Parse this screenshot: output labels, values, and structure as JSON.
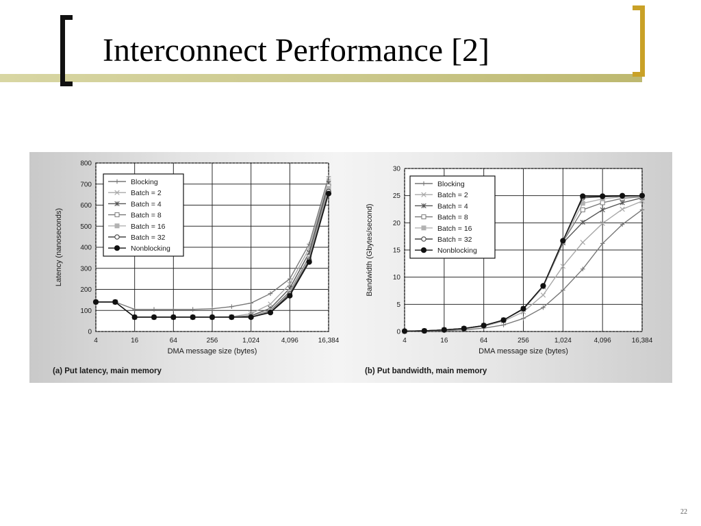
{
  "slide": {
    "title": "Interconnect Performance [2]",
    "page_number": "22",
    "colors": {
      "left_bracket": "#111111",
      "right_bracket": "#c9a127",
      "accent_bar": "#cbc88c"
    }
  },
  "chart_data": [
    {
      "type": "line",
      "caption": "(a) Put latency, main memory",
      "xlabel": "DMA message size (bytes)",
      "ylabel": "Latency (nanoseconds)",
      "x_scale": "log2",
      "x": [
        4,
        8,
        16,
        32,
        64,
        128,
        256,
        512,
        1024,
        2048,
        4096,
        8192,
        16384
      ],
      "x_ticks": [
        4,
        16,
        64,
        256,
        1024,
        4096,
        16384
      ],
      "x_tick_labels": [
        "4",
        "16",
        "64",
        "256",
        "1,024",
        "4,096",
        "16,384"
      ],
      "y_ticks": [
        0,
        100,
        200,
        300,
        400,
        500,
        600,
        700,
        800
      ],
      "y_tick_labels": [
        "0",
        "100",
        "200",
        "300",
        "400",
        "500",
        "600",
        "700",
        "800"
      ],
      "ylim": [
        0,
        800
      ],
      "grid": true,
      "legend_position": "top-left",
      "series": [
        {
          "name": "Blocking",
          "marker": "plus",
          "color": "#777777",
          "values": [
            140,
            140,
            105,
            105,
            105,
            105,
            108,
            118,
            135,
            180,
            250,
            415,
            735
          ]
        },
        {
          "name": "Batch = 2",
          "marker": "x",
          "color": "#a8a8a8",
          "values": [
            140,
            140,
            68,
            68,
            68,
            68,
            68,
            70,
            85,
            130,
            225,
            395,
            715
          ]
        },
        {
          "name": "Batch = 4",
          "marker": "asterisk",
          "color": "#555555",
          "values": [
            140,
            140,
            68,
            68,
            68,
            68,
            68,
            68,
            75,
            110,
            205,
            375,
            705
          ]
        },
        {
          "name": "Batch = 8",
          "marker": "square-open",
          "color": "#777777",
          "values": [
            140,
            140,
            68,
            68,
            68,
            68,
            68,
            68,
            70,
            100,
            190,
            355,
            690
          ]
        },
        {
          "name": "Batch = 16",
          "marker": "square-filled",
          "color": "#b2b2b2",
          "values": [
            140,
            140,
            68,
            68,
            68,
            68,
            68,
            68,
            70,
            95,
            185,
            348,
            680
          ]
        },
        {
          "name": "Batch = 32",
          "marker": "circle-open",
          "color": "#444444",
          "values": [
            140,
            140,
            68,
            68,
            68,
            68,
            68,
            68,
            68,
            92,
            178,
            338,
            665
          ]
        },
        {
          "name": "Nonblocking",
          "marker": "circle-filled",
          "color": "#111111",
          "values": [
            140,
            140,
            68,
            68,
            68,
            68,
            68,
            68,
            68,
            90,
            170,
            330,
            655
          ]
        }
      ]
    },
    {
      "type": "line",
      "caption": "(b) Put bandwidth, main memory",
      "xlabel": "DMA message size (bytes)",
      "ylabel": "Bandwidth (Gbytes/second)",
      "x_scale": "log2",
      "x": [
        4,
        8,
        16,
        32,
        64,
        128,
        256,
        512,
        1024,
        2048,
        4096,
        8192,
        16384
      ],
      "x_ticks": [
        4,
        16,
        64,
        256,
        1024,
        4096,
        16384
      ],
      "x_tick_labels": [
        "4",
        "16",
        "64",
        "256",
        "1,024",
        "4,096",
        "16,384"
      ],
      "y_ticks": [
        0,
        5,
        10,
        15,
        20,
        25,
        30
      ],
      "y_tick_labels": [
        "0",
        "5",
        "10",
        "15",
        "20",
        "25",
        "30"
      ],
      "ylim": [
        0,
        30
      ],
      "grid": true,
      "legend_position": "top-left",
      "series": [
        {
          "name": "Blocking",
          "marker": "plus",
          "color": "#777777",
          "values": [
            0.03,
            0.07,
            0.15,
            0.3,
            0.6,
            1.2,
            2.4,
            4.4,
            7.6,
            11.5,
            16.2,
            19.7,
            22.4
          ]
        },
        {
          "name": "Batch = 2",
          "marker": "x",
          "color": "#a8a8a8",
          "values": [
            0.05,
            0.12,
            0.25,
            0.5,
            0.95,
            1.9,
            3.6,
            6.7,
            12.0,
            16.4,
            19.9,
            22.5,
            24.0
          ]
        },
        {
          "name": "Batch = 4",
          "marker": "asterisk",
          "color": "#555555",
          "values": [
            0.06,
            0.12,
            0.3,
            0.55,
            1.1,
            2.1,
            4.1,
            8.2,
            16.3,
            20.1,
            22.4,
            23.7,
            24.6
          ]
        },
        {
          "name": "Batch = 8",
          "marker": "square-open",
          "color": "#777777",
          "values": [
            0.06,
            0.12,
            0.3,
            0.55,
            1.1,
            2.1,
            4.2,
            8.3,
            16.5,
            22.4,
            23.7,
            24.5,
            24.8
          ]
        },
        {
          "name": "Batch = 16",
          "marker": "square-filled",
          "color": "#b2b2b2",
          "values": [
            0.06,
            0.12,
            0.3,
            0.55,
            1.1,
            2.1,
            4.2,
            8.3,
            16.6,
            23.6,
            24.4,
            24.8,
            25.0
          ]
        },
        {
          "name": "Batch = 32",
          "marker": "circle-open",
          "color": "#444444",
          "values": [
            0.06,
            0.12,
            0.3,
            0.55,
            1.1,
            2.1,
            4.2,
            8.4,
            16.7,
            24.6,
            24.8,
            24.9,
            25.0
          ]
        },
        {
          "name": "Nonblocking",
          "marker": "circle-filled",
          "color": "#111111",
          "values": [
            0.06,
            0.12,
            0.3,
            0.55,
            1.1,
            2.1,
            4.2,
            8.4,
            16.7,
            24.9,
            24.9,
            25.0,
            25.0
          ]
        }
      ]
    }
  ]
}
